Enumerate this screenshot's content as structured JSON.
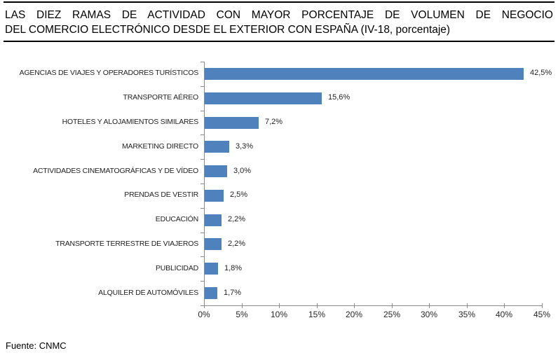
{
  "title": {
    "lines": [
      "LAS DIEZ RAMAS DE ACTIVIDAD CON MAYOR PORCENTAJE DE VOLUMEN DE NEGOCIO",
      "DEL COMERCIO ELECTRÓNICO DESDE EL EXTERIOR CON ESPAÑA (IV-18, porcentaje)"
    ]
  },
  "source": "Fuente: CNMC",
  "chart_data": {
    "type": "bar",
    "orientation": "horizontal",
    "title": "LAS DIEZ RAMAS DE ACTIVIDAD CON MAYOR PORCENTAJE DE VOLUMEN DE NEGOCIO DEL COMERCIO ELECTRÓNICO DESDE EL EXTERIOR CON ESPAÑA (IV-18, porcentaje)",
    "categories": [
      "AGENCIAS DE VIAJES Y OPERADORES TURÍSTICOS",
      "TRANSPORTE AÉREO",
      "HOTELES Y ALOJAMIENTOS SIMILARES",
      "MARKETING DIRECTO",
      "ACTIVIDADES CINEMATOGRÁFICAS Y DE VÍDEO",
      "PRENDAS DE VESTIR",
      "EDUCACIÓN",
      "TRANSPORTE TERRESTRE DE VIAJEROS",
      "PUBLICIDAD",
      "ALQUILER DE AUTOMÓVILES"
    ],
    "values": [
      42.5,
      15.6,
      7.2,
      3.3,
      3.0,
      2.5,
      2.2,
      2.2,
      1.8,
      1.7
    ],
    "value_labels": [
      "42,5%",
      "15,6%",
      "7,2%",
      "3,3%",
      "3,0%",
      "2,5%",
      "2,2%",
      "2,2%",
      "1,8%",
      "1,7%"
    ],
    "xlabel": "",
    "ylabel": "",
    "xlim": [
      0,
      45
    ],
    "x_tick_step": 5,
    "x_tick_labels": [
      "0%",
      "5%",
      "10%",
      "15%",
      "20%",
      "25%",
      "30%",
      "35%",
      "40%",
      "45%"
    ],
    "grid": false,
    "legend": null,
    "bar_color": "#4F81BD",
    "axis_color": "#8a8a8a"
  }
}
